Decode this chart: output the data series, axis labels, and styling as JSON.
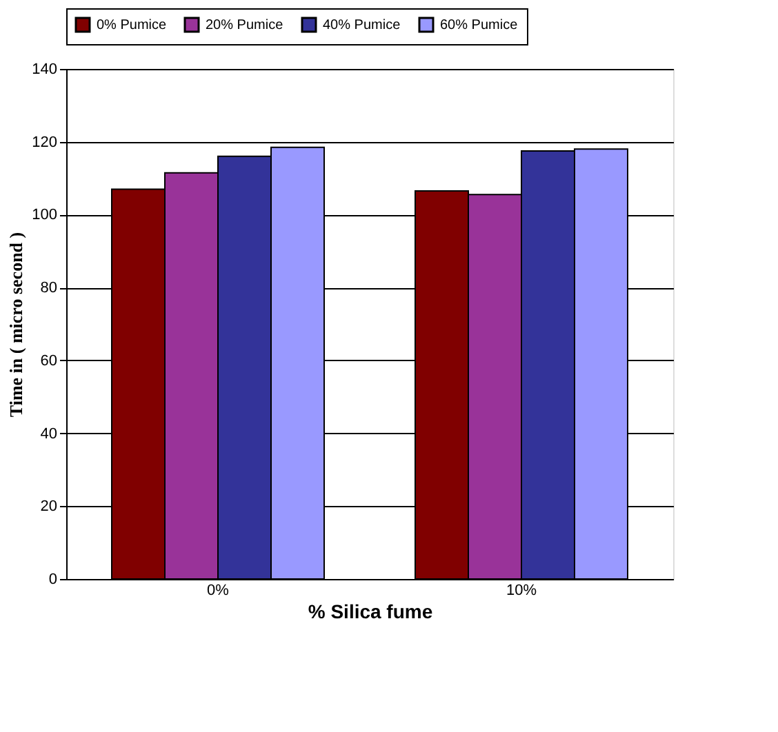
{
  "chart_data": {
    "type": "bar",
    "xlabel": "% Silica fume",
    "ylabel": "Time in ( micro second )",
    "categories": [
      "0%",
      "10%"
    ],
    "series": [
      {
        "name": "0% Pumice",
        "color": "#800000",
        "values": [
          107,
          106.5
        ]
      },
      {
        "name": "20% Pumice",
        "color": "#993399",
        "values": [
          111.5,
          105.5
        ]
      },
      {
        "name": "40% Pumice",
        "color": "#333399",
        "values": [
          116,
          117.5
        ]
      },
      {
        "name": "60% Pumice",
        "color": "#9999ff",
        "values": [
          118.5,
          118
        ]
      }
    ],
    "ylim": [
      0,
      140
    ],
    "yticks": [
      0,
      20,
      40,
      60,
      80,
      100,
      120,
      140
    ],
    "grid": "y",
    "legend": "top"
  }
}
